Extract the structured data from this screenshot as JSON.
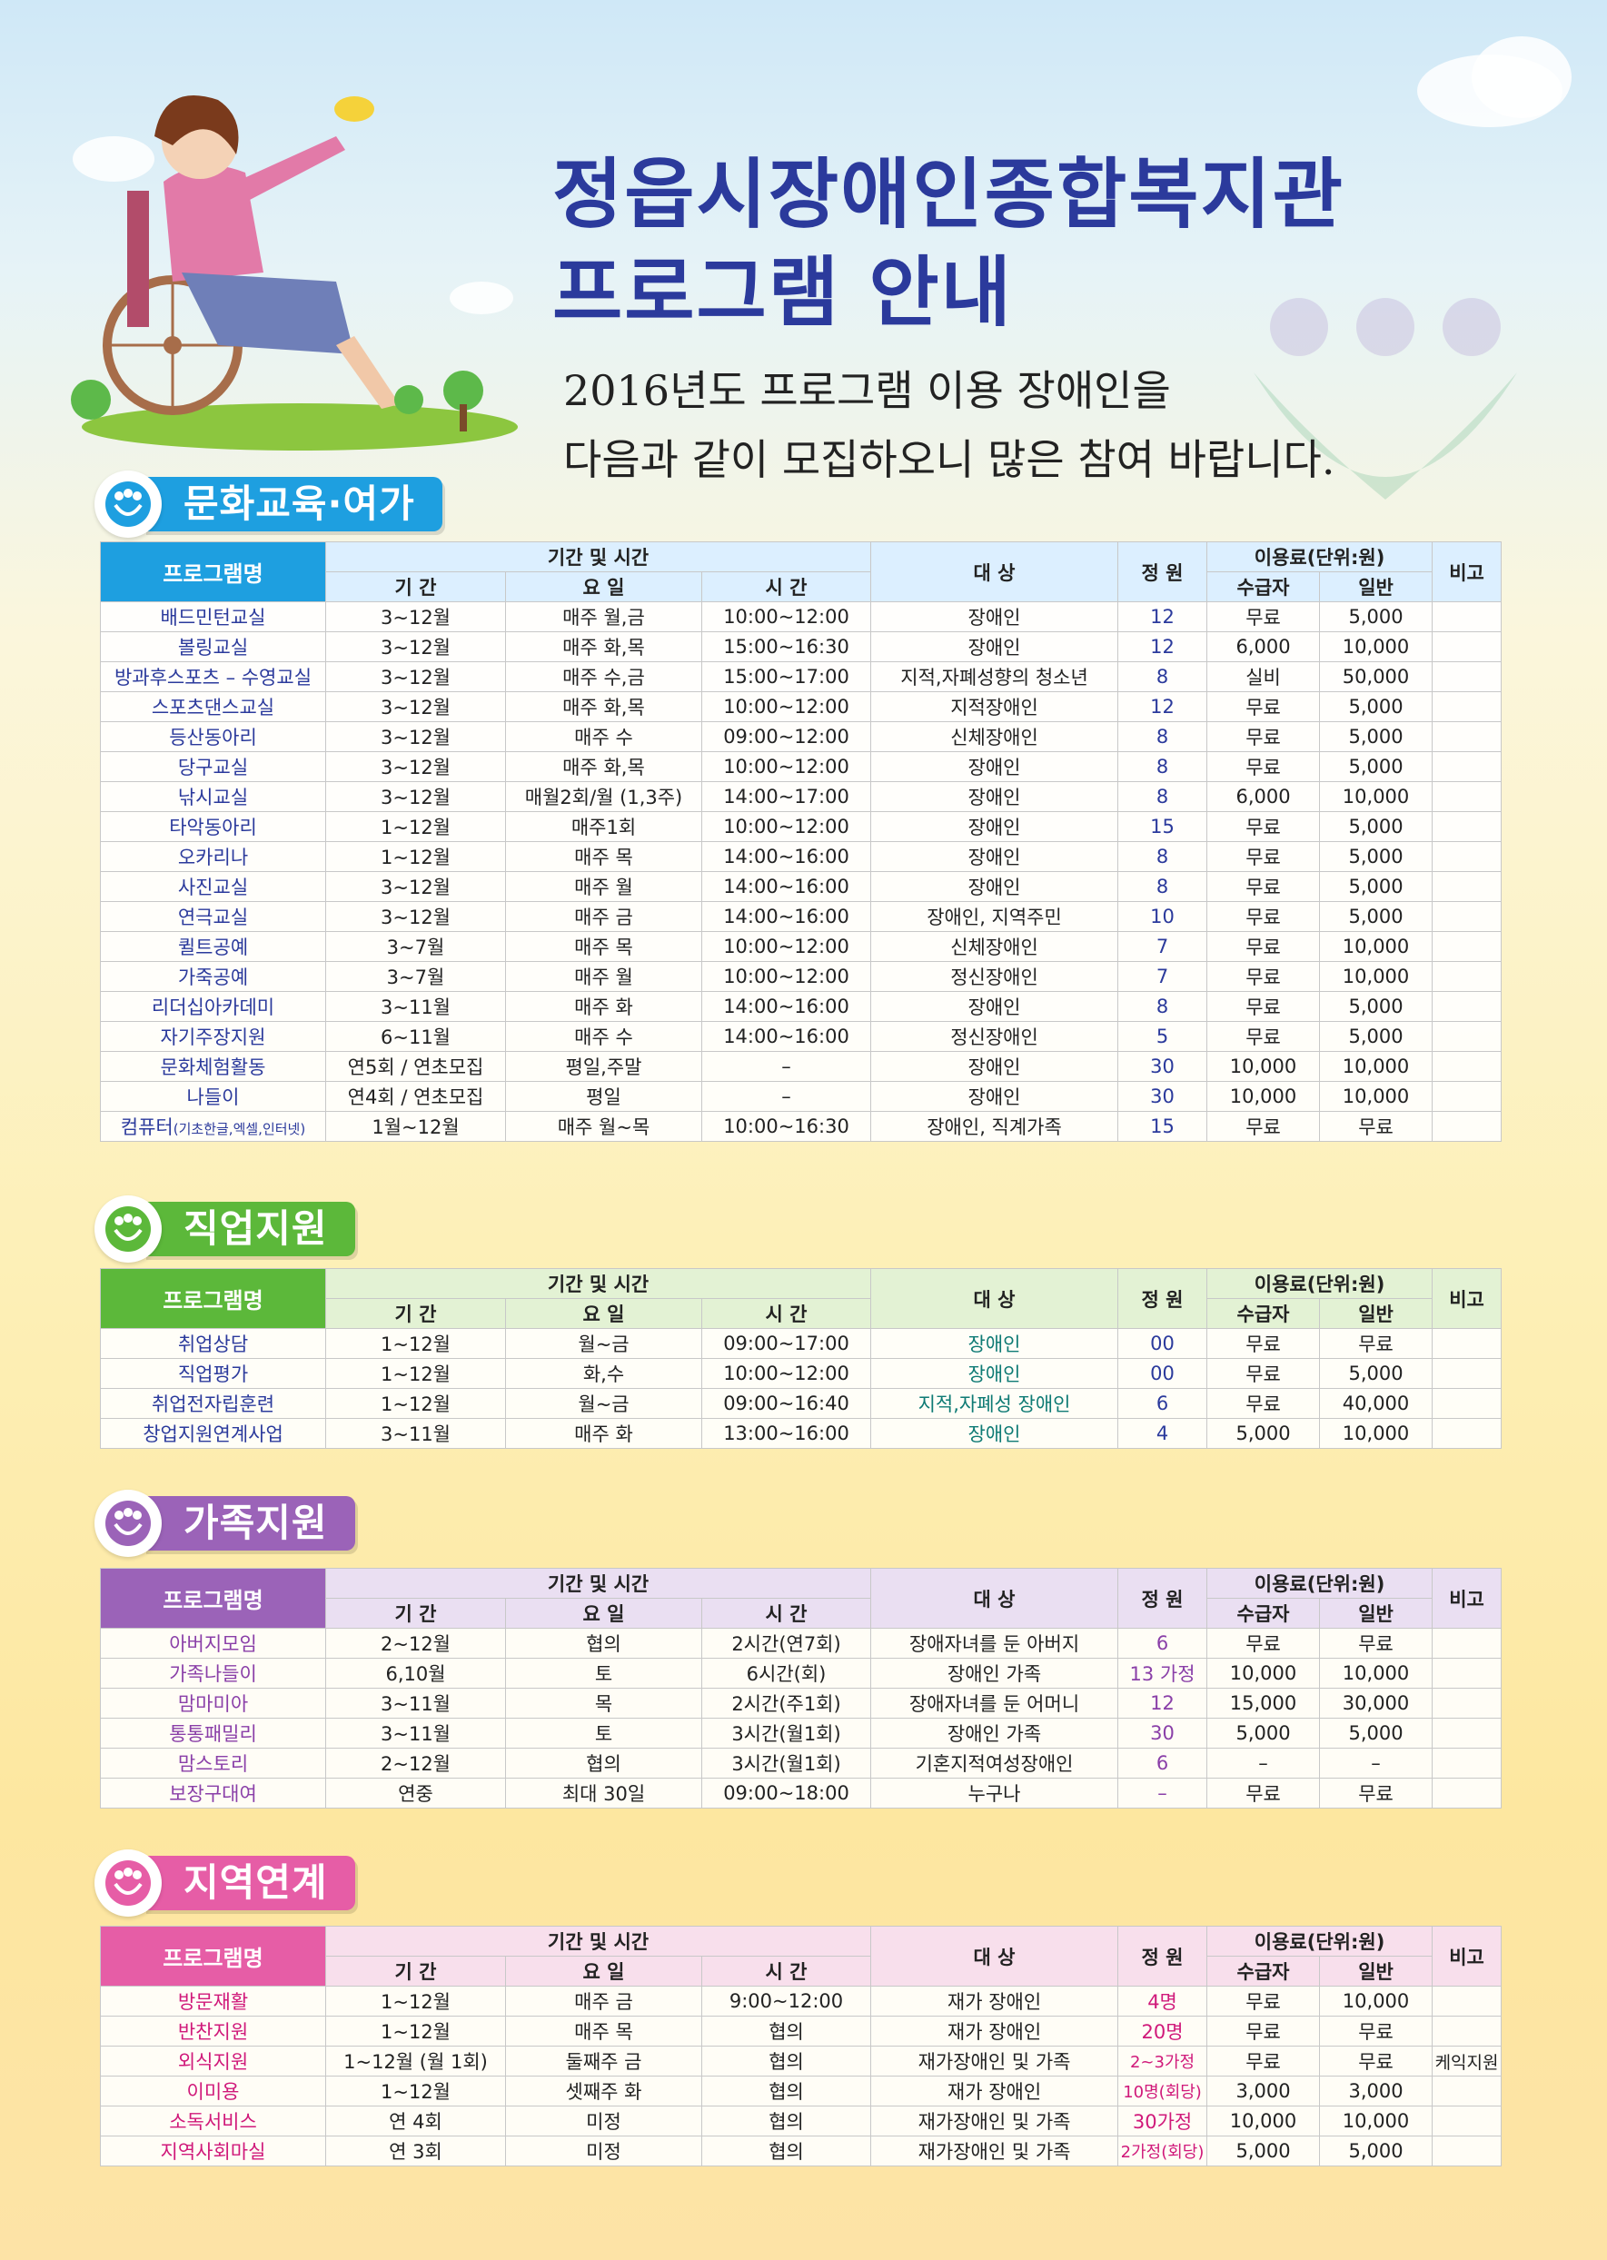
{
  "header": {
    "title_line1": "정읍시장애인종합복지관",
    "title_line2": "프로그램 안내",
    "subtitle_line1": "2016년도 프로그램 이용 장애인을",
    "subtitle_line2": "다음과 같이 모집하오니 많은 참여 바랍니다."
  },
  "columns": {
    "program": "프로그램명",
    "period_time": "기간 및 시간",
    "period": "기 간",
    "day": "요 일",
    "time": "시 간",
    "target": "대 상",
    "capacity": "정 원",
    "fee": "이용료(단위:원)",
    "fee_recipient": "수급자",
    "fee_general": "일반",
    "note": "비고"
  },
  "sections": [
    {
      "title": "문화교육·여가",
      "color": "#1e9fe0",
      "name_color": "#2b3a9c",
      "cap_color": "#2b3a9c",
      "header_bg": "#dcefff",
      "rows": [
        [
          "배드민턴교실",
          "3~12월",
          "매주 월,금",
          "10:00~12:00",
          "장애인",
          "12",
          "무료",
          "5,000",
          ""
        ],
        [
          "볼링교실",
          "3~12월",
          "매주 화,목",
          "15:00~16:30",
          "장애인",
          "12",
          "6,000",
          "10,000",
          ""
        ],
        [
          "방과후스포츠 – 수영교실",
          "3~12월",
          "매주 수,금",
          "15:00~17:00",
          "지적,자폐성향의 청소년",
          "8",
          "실비",
          "50,000",
          ""
        ],
        [
          "스포츠댄스교실",
          "3~12월",
          "매주 화,목",
          "10:00~12:00",
          "지적장애인",
          "12",
          "무료",
          "5,000",
          ""
        ],
        [
          "등산동아리",
          "3~12월",
          "매주 수",
          "09:00~12:00",
          "신체장애인",
          "8",
          "무료",
          "5,000",
          ""
        ],
        [
          "당구교실",
          "3~12월",
          "매주 화,목",
          "10:00~12:00",
          "장애인",
          "8",
          "무료",
          "5,000",
          ""
        ],
        [
          "낚시교실",
          "3~12월",
          "매월2회/월 (1,3주)",
          "14:00~17:00",
          "장애인",
          "8",
          "6,000",
          "10,000",
          ""
        ],
        [
          "타악동아리",
          "1~12월",
          "매주1회",
          "10:00~12:00",
          "장애인",
          "15",
          "무료",
          "5,000",
          ""
        ],
        [
          "오카리나",
          "1~12월",
          "매주 목",
          "14:00~16:00",
          "장애인",
          "8",
          "무료",
          "5,000",
          ""
        ],
        [
          "사진교실",
          "3~12월",
          "매주 월",
          "14:00~16:00",
          "장애인",
          "8",
          "무료",
          "5,000",
          ""
        ],
        [
          "연극교실",
          "3~12월",
          "매주 금",
          "14:00~16:00",
          "장애인, 지역주민",
          "10",
          "무료",
          "5,000",
          ""
        ],
        [
          "퀼트공예",
          "3~7월",
          "매주 목",
          "10:00~12:00",
          "신체장애인",
          "7",
          "무료",
          "10,000",
          ""
        ],
        [
          "가죽공예",
          "3~7월",
          "매주 월",
          "10:00~12:00",
          "정신장애인",
          "7",
          "무료",
          "10,000",
          ""
        ],
        [
          "리더십아카데미",
          "3~11월",
          "매주 화",
          "14:00~16:00",
          "장애인",
          "8",
          "무료",
          "5,000",
          ""
        ],
        [
          "자기주장지원",
          "6~11월",
          "매주 수",
          "14:00~16:00",
          "정신장애인",
          "5",
          "무료",
          "5,000",
          ""
        ],
        [
          "문화체험활동",
          "연5회 / 연초모집",
          "평일,주말",
          "–",
          "장애인",
          "30",
          "10,000",
          "10,000",
          ""
        ],
        [
          "나들이",
          "연4회 / 연초모집",
          "평일",
          "–",
          "장애인",
          "30",
          "10,000",
          "10,000",
          ""
        ],
        [
          "컴퓨터",
          "1월~12월",
          "매주 월~목",
          "10:00~16:30",
          "장애인, 직계가족",
          "15",
          "무료",
          "무료",
          ""
        ]
      ],
      "computer_note": "(기초한글,엑셀,인터넷)"
    },
    {
      "title": "직업지원",
      "color": "#5cb83a",
      "name_color": "#2b3a9c",
      "cap_color": "#2b3a9c",
      "header_bg": "#e3f2d4",
      "rows": [
        [
          "취업상담",
          "1~12월",
          "월~금",
          "09:00~17:00",
          "장애인",
          "00",
          "무료",
          "무료",
          ""
        ],
        [
          "직업평가",
          "1~12월",
          "화,수",
          "10:00~12:00",
          "장애인",
          "00",
          "무료",
          "5,000",
          ""
        ],
        [
          "취업전자립훈련",
          "1~12월",
          "월~금",
          "09:00~16:40",
          "지적,자폐성 장애인",
          "6",
          "무료",
          "40,000",
          ""
        ],
        [
          "창업지원연계사업",
          "3~11월",
          "매주 화",
          "13:00~16:00",
          "장애인",
          "4",
          "5,000",
          "10,000",
          ""
        ]
      ]
    },
    {
      "title": "가족지원",
      "color": "#9b63b8",
      "name_color": "#8a3fa8",
      "cap_color": "#8a3fa8",
      "header_bg": "#eadff2",
      "rows": [
        [
          "아버지모임",
          "2~12월",
          "협의",
          "2시간(연7회)",
          "장애자녀를 둔 아버지",
          "6",
          "무료",
          "무료",
          ""
        ],
        [
          "가족나들이",
          "6,10월",
          "토",
          "6시간(회)",
          "장애인 가족",
          "13 가정",
          "10,000",
          "10,000",
          ""
        ],
        [
          "맘마미아",
          "3~11월",
          "목",
          "2시간(주1회)",
          "장애자녀를 둔 어머니",
          "12",
          "15,000",
          "30,000",
          ""
        ],
        [
          "통통패밀리",
          "3~11월",
          "토",
          "3시간(월1회)",
          "장애인 가족",
          "30",
          "5,000",
          "5,000",
          ""
        ],
        [
          "맘스토리",
          "2~12월",
          "협의",
          "3시간(월1회)",
          "기혼지적여성장애인",
          "6",
          "–",
          "–",
          ""
        ],
        [
          "보장구대여",
          "연중",
          "최대 30일",
          "09:00~18:00",
          "누구나",
          "–",
          "무료",
          "무료",
          ""
        ]
      ]
    },
    {
      "title": "지역연계",
      "color": "#e65da6",
      "name_color": "#d0197a",
      "cap_color": "#d0197a",
      "header_bg": "#f8dfec",
      "rows": [
        [
          "방문재활",
          "1~12월",
          "매주 금",
          "9:00~12:00",
          "재가 장애인",
          "4명",
          "무료",
          "10,000",
          ""
        ],
        [
          "반찬지원",
          "1~12월",
          "매주 목",
          "협의",
          "재가 장애인",
          "20명",
          "무료",
          "무료",
          ""
        ],
        [
          "외식지원",
          "1~12월 (월 1회)",
          "둘째주 금",
          "협의",
          "재가장애인 및 가족",
          "2~3가정",
          "무료",
          "무료",
          "케익지원"
        ],
        [
          "이미용",
          "1~12월",
          "셋째주 화",
          "협의",
          "재가 장애인",
          "10명(회당)",
          "3,000",
          "3,000",
          ""
        ],
        [
          "소독서비스",
          "연 4회",
          "미정",
          "협의",
          "재가장애인 및 가족",
          "30가정",
          "10,000",
          "10,000",
          ""
        ],
        [
          "지역사회마실",
          "연 3회",
          "미정",
          "협의",
          "재가장애인 및 가족",
          "2가정(회당)",
          "5,000",
          "5,000",
          ""
        ]
      ]
    }
  ]
}
